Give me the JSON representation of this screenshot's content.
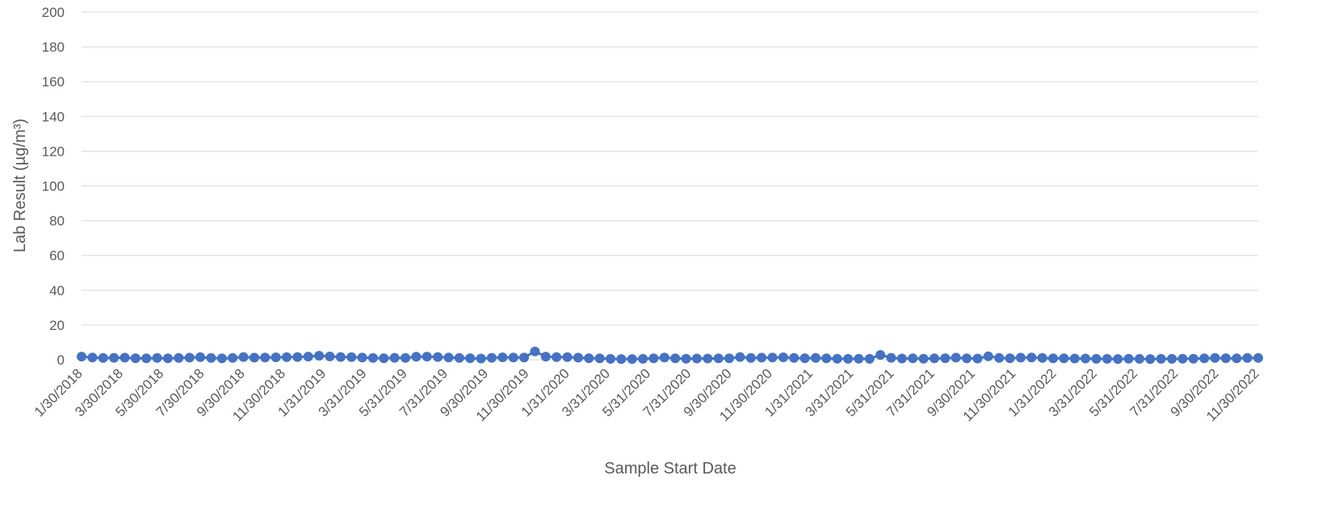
{
  "chart_data": {
    "type": "line",
    "xlabel": "Sample Start Date",
    "ylabel": "Lab Result (µg/m³)",
    "ylim": [
      0,
      200
    ],
    "yticks": [
      0,
      20,
      40,
      60,
      80,
      100,
      120,
      140,
      160,
      180,
      200
    ],
    "xticks": [
      "1/30/2018",
      "3/30/2018",
      "5/30/2018",
      "7/30/2018",
      "9/30/2018",
      "11/30/2018",
      "1/31/2019",
      "3/31/2019",
      "5/31/2019",
      "7/31/2019",
      "9/30/2019",
      "11/30/2019",
      "1/31/2020",
      "3/31/2020",
      "5/31/2020",
      "7/31/2020",
      "9/30/2020",
      "11/30/2020",
      "1/31/2021",
      "3/31/2021",
      "5/31/2021",
      "7/31/2021",
      "9/30/2021",
      "11/30/2021",
      "1/31/2022",
      "3/31/2022",
      "5/31/2022",
      "7/31/2022",
      "9/30/2022",
      "11/30/2022"
    ],
    "grid": true,
    "colors": {
      "series": "#4472c4",
      "grid": "#d9d9d9",
      "text": "#595959"
    },
    "series": [
      {
        "values": [
          1.8,
          1.3,
          1.0,
          1.1,
          1.2,
          0.9,
          0.8,
          1.0,
          0.8,
          1.0,
          1.2,
          1.5,
          1.0,
          0.8,
          1.0,
          1.6,
          1.2,
          1.3,
          1.4,
          1.5,
          1.6,
          1.8,
          2.3,
          1.9,
          1.6,
          1.5,
          1.3,
          1.0,
          0.9,
          1.1,
          1.0,
          1.7,
          1.8,
          1.6,
          1.3,
          1.0,
          0.9,
          0.7,
          1.1,
          1.4,
          1.3,
          1.3,
          4.8,
          1.8,
          1.5,
          1.5,
          1.2,
          0.9,
          0.8,
          0.5,
          0.4,
          0.4,
          0.5,
          0.8,
          1.3,
          0.8,
          0.6,
          0.7,
          0.7,
          0.8,
          0.8,
          1.6,
          1.0,
          1.2,
          1.3,
          1.4,
          1.0,
          0.9,
          1.0,
          0.8,
          0.6,
          0.5,
          0.6,
          0.5,
          2.8,
          1.1,
          0.7,
          0.8,
          0.6,
          0.8,
          0.9,
          1.2,
          0.8,
          0.7,
          2.0,
          1.0,
          0.9,
          1.2,
          1.3,
          1.0,
          0.8,
          0.8,
          0.7,
          0.7,
          0.5,
          0.5,
          0.4,
          0.6,
          0.5,
          0.4,
          0.5,
          0.5,
          0.6,
          0.6,
          0.8,
          1.0,
          0.9,
          0.8,
          1.0,
          1.0
        ]
      }
    ]
  }
}
